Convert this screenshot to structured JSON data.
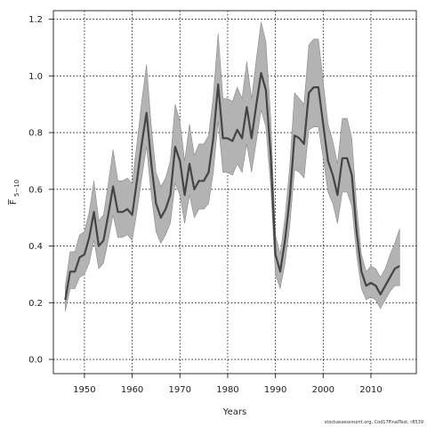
{
  "chart_data": {
    "type": "line",
    "title": "",
    "xlabel": "Years",
    "ylabel_main": "F",
    "ylabel_sub": "5−10",
    "xlim": [
      1943.5,
      2019.5
    ],
    "ylim": [
      -0.05,
      1.23
    ],
    "xticks": [
      1950,
      1960,
      1970,
      1980,
      1990,
      2000,
      2010
    ],
    "yticks": [
      0.0,
      0.2,
      0.4,
      0.6,
      0.8,
      1.0,
      1.2
    ],
    "xtick_labels": [
      "1950",
      "1960",
      "1970",
      "1980",
      "1990",
      "2000",
      "2010"
    ],
    "ytick_labels": [
      "0.0",
      "0.2",
      "0.4",
      "0.6",
      "0.8",
      "1.0",
      "1.2"
    ],
    "grid": true,
    "colors": {
      "line": "#444444",
      "band": "#b3b3b3",
      "band_edge": "#8a8a8a"
    },
    "series": [
      {
        "x": [
          1946,
          1947,
          1948,
          1949,
          1950,
          1951,
          1952,
          1953,
          1954,
          1955,
          1956,
          1957,
          1958,
          1959,
          1960,
          1961,
          1962,
          1963,
          1964,
          1965,
          1966,
          1967,
          1968,
          1969,
          1970,
          1971,
          1972,
          1973,
          1974,
          1975,
          1976,
          1977,
          1978,
          1979,
          1980,
          1981,
          1982,
          1983,
          1984,
          1985,
          1986,
          1987,
          1988,
          1989,
          1990,
          1991,
          1992,
          1993,
          1994,
          1995,
          1996,
          1997,
          1998,
          1999,
          2000,
          2001,
          2002,
          2003,
          2004,
          2005,
          2006,
          2007,
          2008,
          2009,
          2010,
          2011,
          2012,
          2013,
          2014,
          2015,
          2016
        ],
        "y": [
          0.21,
          0.31,
          0.31,
          0.36,
          0.37,
          0.43,
          0.52,
          0.4,
          0.42,
          0.51,
          0.61,
          0.52,
          0.52,
          0.53,
          0.51,
          0.63,
          0.76,
          0.87,
          0.69,
          0.55,
          0.5,
          0.53,
          0.58,
          0.75,
          0.7,
          0.58,
          0.69,
          0.6,
          0.63,
          0.63,
          0.66,
          0.78,
          0.97,
          0.78,
          0.78,
          0.77,
          0.81,
          0.78,
          0.89,
          0.78,
          0.9,
          1.01,
          0.95,
          0.72,
          0.37,
          0.31,
          0.42,
          0.57,
          0.79,
          0.78,
          0.76,
          0.94,
          0.96,
          0.96,
          0.83,
          0.7,
          0.65,
          0.58,
          0.71,
          0.71,
          0.65,
          0.45,
          0.31,
          0.26,
          0.27,
          0.26,
          0.23,
          0.26,
          0.29,
          0.32,
          0.33
        ],
        "lower": [
          0.17,
          0.25,
          0.25,
          0.29,
          0.3,
          0.34,
          0.42,
          0.32,
          0.34,
          0.42,
          0.51,
          0.43,
          0.43,
          0.44,
          0.42,
          0.52,
          0.64,
          0.75,
          0.58,
          0.45,
          0.41,
          0.44,
          0.48,
          0.62,
          0.58,
          0.48,
          0.58,
          0.5,
          0.53,
          0.53,
          0.55,
          0.66,
          0.84,
          0.66,
          0.66,
          0.65,
          0.69,
          0.66,
          0.76,
          0.66,
          0.77,
          0.88,
          0.82,
          0.61,
          0.3,
          0.25,
          0.34,
          0.47,
          0.67,
          0.66,
          0.64,
          0.81,
          0.82,
          0.82,
          0.71,
          0.59,
          0.55,
          0.48,
          0.59,
          0.59,
          0.54,
          0.37,
          0.25,
          0.21,
          0.22,
          0.21,
          0.18,
          0.21,
          0.24,
          0.26,
          0.26
        ],
        "upper": [
          0.26,
          0.38,
          0.38,
          0.44,
          0.45,
          0.52,
          0.63,
          0.49,
          0.51,
          0.62,
          0.74,
          0.63,
          0.63,
          0.64,
          0.62,
          0.76,
          0.91,
          1.04,
          0.82,
          0.66,
          0.61,
          0.64,
          0.7,
          0.9,
          0.84,
          0.7,
          0.83,
          0.72,
          0.76,
          0.76,
          0.79,
          0.93,
          1.15,
          0.92,
          0.92,
          0.91,
          0.96,
          0.92,
          1.05,
          0.92,
          1.06,
          1.19,
          1.12,
          0.85,
          0.44,
          0.37,
          0.5,
          0.68,
          0.94,
          0.92,
          0.9,
          1.11,
          1.13,
          1.13,
          0.98,
          0.83,
          0.77,
          0.69,
          0.85,
          0.85,
          0.78,
          0.54,
          0.37,
          0.31,
          0.33,
          0.32,
          0.29,
          0.32,
          0.37,
          0.41,
          0.46
        ]
      }
    ]
  },
  "footer": {
    "credit": "stockassessment.org, Cod17FinalTest, r8539"
  }
}
